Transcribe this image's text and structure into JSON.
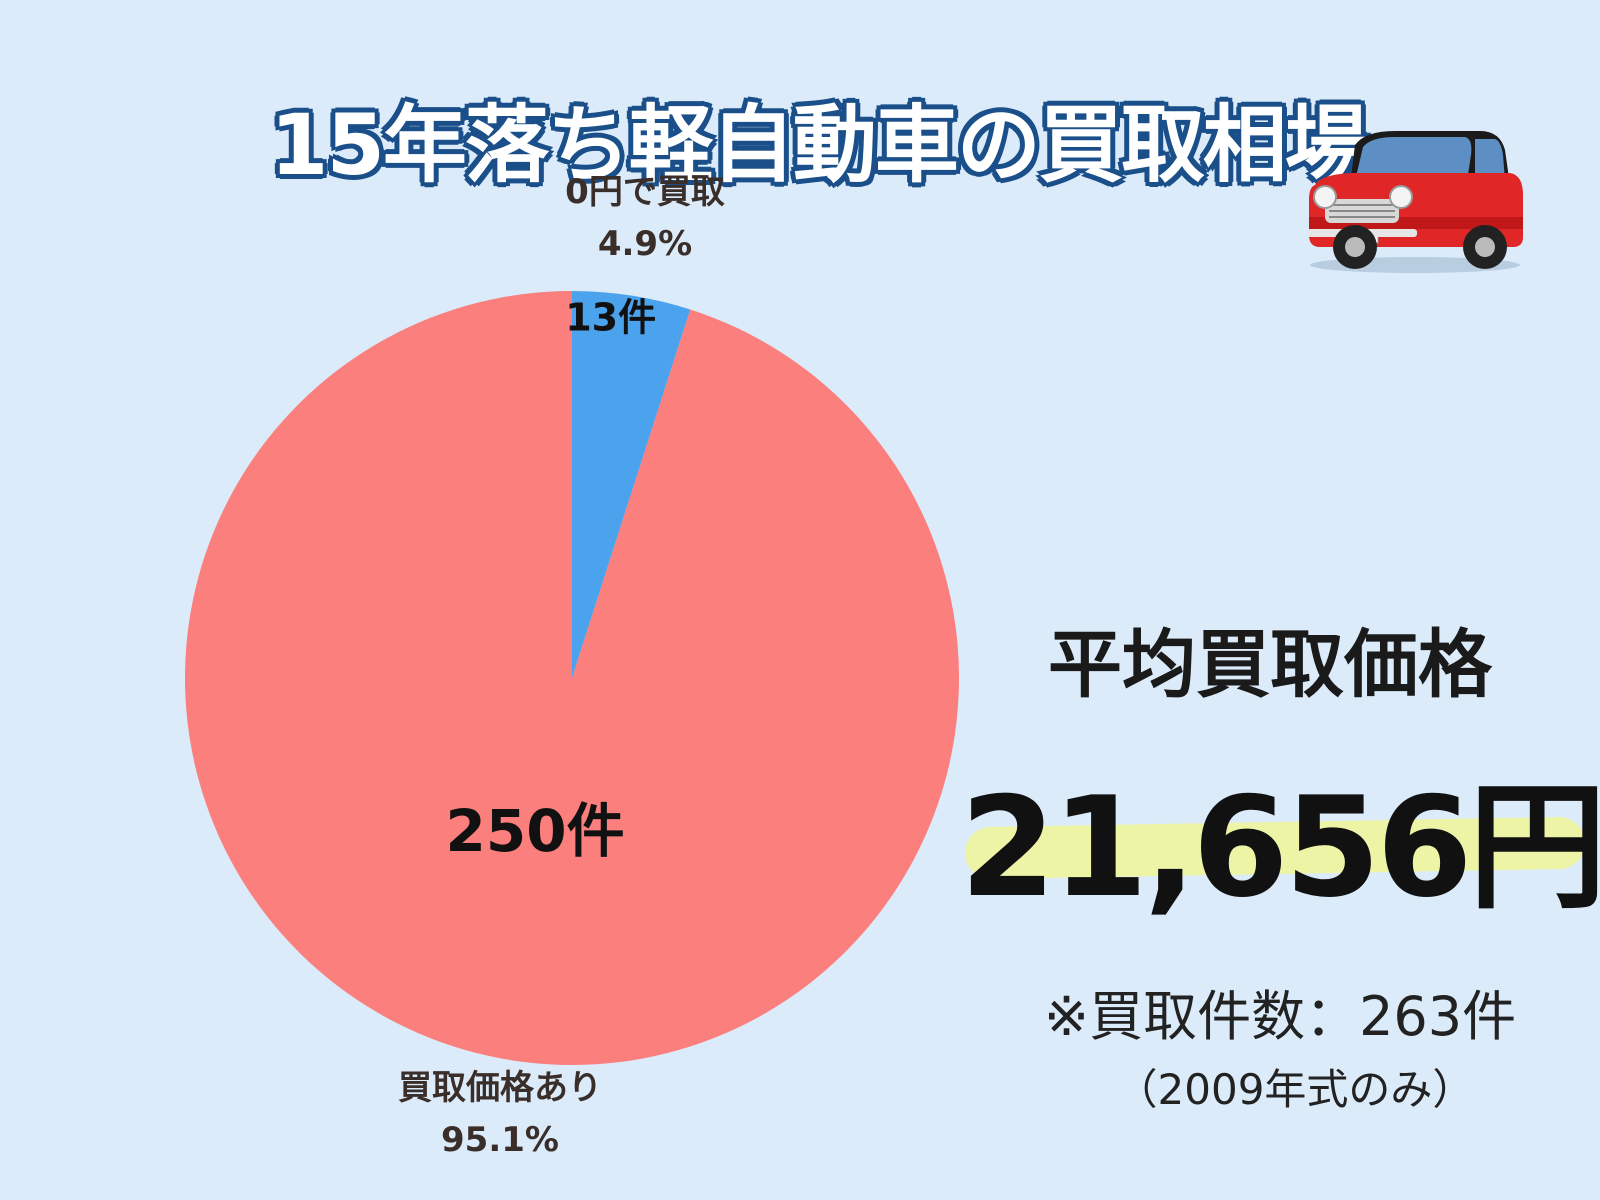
{
  "title": "15年落ち軽自動車の買取相場",
  "chart_data": {
    "type": "pie",
    "slices": [
      {
        "label": "0円で買取",
        "percent_label": "4.9%",
        "count_label": "13件",
        "value": 13,
        "color": "#4aa3ec"
      },
      {
        "label": "買取価格あり",
        "percent_label": "95.1%",
        "count_label": "250件",
        "value": 250,
        "color": "#fb7f7d"
      }
    ]
  },
  "summary": {
    "avg_label": "平均買取価格",
    "avg_value": "21,656円",
    "note": "※買取件数：263件",
    "subnote": "（2009年式のみ）"
  },
  "icons": {
    "car": "red-car-icon"
  }
}
